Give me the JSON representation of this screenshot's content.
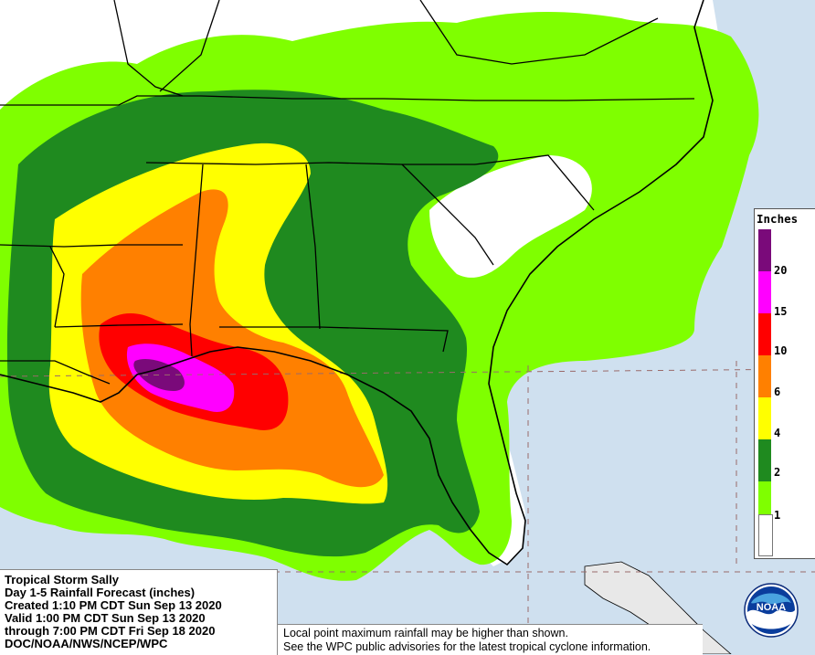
{
  "info": {
    "line1": "Tropical Storm Sally",
    "line2": "Day 1-5 Rainfall Forecast (inches)",
    "line3": "Created 1:10 PM CDT Sun Sep 13 2020",
    "line4": "Valid 1:00 PM CDT Sun Sep 13 2020",
    "line5": "through 7:00 PM CDT Fri Sep 18 2020",
    "line6": "DOC/NOAA/NWS/NCEP/WPC"
  },
  "note": {
    "line1": "Local point maximum rainfall may be higher than shown.",
    "line2": "See the WPC public advisories for the latest tropical cyclone information."
  },
  "legend": {
    "title": "Inches",
    "ticks": [
      "20",
      "15",
      "10",
      "6",
      "4",
      "2",
      "1"
    ],
    "colors": [
      "#7a0a7a",
      "#ff00ff",
      "#ff0000",
      "#ff8000",
      "#ffff00",
      "#1f8a1f",
      "#7fff00",
      "#ffffff"
    ]
  },
  "map": {
    "ocean_color": "#cfe0ef",
    "land_color": "#ffffff",
    "border_color": "#000000",
    "gridline_color": "#9a6a6a"
  },
  "logo": {
    "text": "NOAA"
  }
}
